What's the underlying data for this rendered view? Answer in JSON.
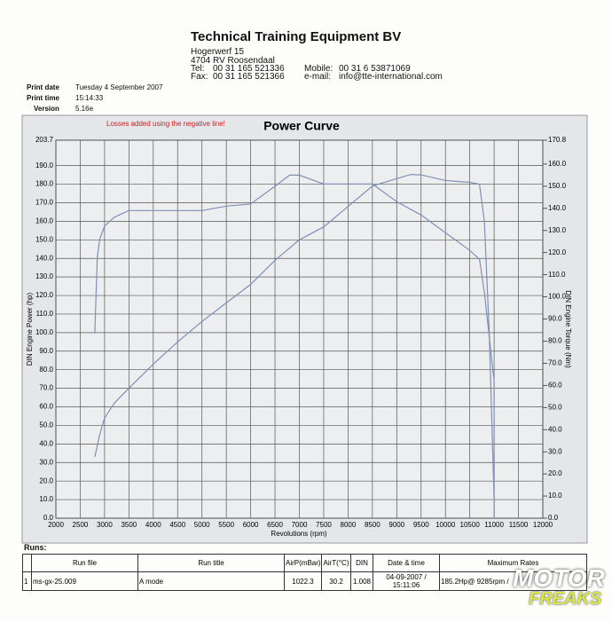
{
  "header": {
    "company": "Technical Training Equipment BV",
    "street": "Hogerwerf 15",
    "city": "4704 RV Roosendaal",
    "tel_label": "Tel:",
    "tel": "00 31 165 521336",
    "fax_label": "Fax:",
    "fax": "00 31 165 521366",
    "mobile_label": "Mobile:",
    "mobile": "00 31 6 53871069",
    "email_label": "e-mail:",
    "email": "info@tte-international.com"
  },
  "print_info": {
    "date_label": "Print date",
    "date": "Tuesday 4 September 2007",
    "time_label": "Print time",
    "time": "15:14:33",
    "version_label": "Version",
    "version": "5.16e"
  },
  "chart_data": {
    "type": "line",
    "title": "Power Curve",
    "annotation": "Losses added using the negative line!",
    "x_label": "Revolutions (rpm)",
    "y_label": "DIN Engine Power (hp)",
    "y2_label": "DIN Engine Torque (Nm)",
    "xlim": [
      2000,
      12000
    ],
    "xticks": [
      2000,
      2500,
      3000,
      3500,
      4000,
      4500,
      5000,
      5500,
      6000,
      6500,
      7000,
      7500,
      8000,
      8500,
      9000,
      9500,
      10000,
      10500,
      11000,
      11500,
      12000
    ],
    "ylim": [
      0,
      203.7
    ],
    "yticks": [
      {
        "value": 0,
        "label": "0.0"
      },
      {
        "value": 10,
        "label": "10.0"
      },
      {
        "value": 20,
        "label": "20.0"
      },
      {
        "value": 30,
        "label": "30.0"
      },
      {
        "value": 40,
        "label": "40.0"
      },
      {
        "value": 50,
        "label": "50.0"
      },
      {
        "value": 60,
        "label": "60.0"
      },
      {
        "value": 70,
        "label": "70.0"
      },
      {
        "value": 80,
        "label": "80.0"
      },
      {
        "value": 90,
        "label": "90.0"
      },
      {
        "value": 100,
        "label": "100.0"
      },
      {
        "value": 110,
        "label": "110.0"
      },
      {
        "value": 120,
        "label": "120.0"
      },
      {
        "value": 130,
        "label": "130.0"
      },
      {
        "value": 140,
        "label": "140.0"
      },
      {
        "value": 150,
        "label": "150.0"
      },
      {
        "value": 160,
        "label": "160.0"
      },
      {
        "value": 170,
        "label": "170.0"
      },
      {
        "value": 180,
        "label": "180.0"
      },
      {
        "value": 190,
        "label": "190.0"
      },
      203.7
    ],
    "y2lim": [
      0,
      170.8
    ],
    "y2ticks": [
      {
        "value": 0,
        "label": "0.0"
      },
      {
        "value": 10,
        "label": "10.0"
      },
      {
        "value": 20,
        "label": "20.0"
      },
      {
        "value": 30,
        "label": "30.0"
      },
      {
        "value": 40,
        "label": "40.0"
      },
      {
        "value": 50,
        "label": "50.0"
      },
      {
        "value": 60,
        "label": "60.0"
      },
      {
        "value": 70,
        "label": "70.0"
      },
      {
        "value": 80,
        "label": "80.0"
      },
      {
        "value": 90,
        "label": "90.0"
      },
      {
        "value": 100,
        "label": "100.0"
      },
      {
        "value": 110,
        "label": "110.0"
      },
      {
        "value": 120,
        "label": "120.0"
      },
      {
        "value": 130,
        "label": "130.0"
      },
      {
        "value": 140,
        "label": "140.0"
      },
      {
        "value": 150,
        "label": "150.0"
      },
      {
        "value": 160,
        "label": "160.0"
      },
      170.8
    ],
    "grid": true,
    "series": [
      {
        "color": "#8090b4",
        "x": [
          2800,
          2900,
          3000,
          3200,
          3500,
          4000,
          4500,
          5000,
          5500,
          6000,
          6500,
          7000,
          7500,
          8000,
          8500,
          9000,
          9285,
          9500,
          10000,
          10500,
          10700,
          10800,
          10900,
          11000,
          11000
        ],
        "values": [
          33,
          45,
          54,
          62,
          70,
          83,
          95,
          106,
          116,
          126,
          139,
          150,
          157,
          168,
          179,
          183,
          185.2,
          185,
          182,
          181,
          180,
          160,
          100,
          10,
          0
        ]
      },
      {
        "color": "#8090b4",
        "axis": "y2",
        "x": [
          2800,
          2850,
          2900,
          3000,
          3200,
          3500,
          4000,
          5000,
          5500,
          6000,
          6500,
          6800,
          7000,
          7500,
          8000,
          8500,
          9000,
          9500,
          10000,
          10500,
          10700,
          10800,
          10900,
          11000,
          11000
        ],
        "values": [
          83.5,
          118,
          126,
          132,
          136,
          139,
          139,
          139,
          141,
          142,
          150,
          155,
          155,
          151,
          151,
          151,
          143,
          137,
          129,
          121,
          117,
          102,
          82,
          62,
          0
        ]
      }
    ]
  },
  "runs": {
    "title": "Runs:",
    "columns": [
      "Run file",
      "Run title",
      "AirP(mBar)",
      "AirT(°C)",
      "DIN",
      "Date & time",
      "Maximum Rates"
    ],
    "rows": [
      [
        "1",
        "ms-gx-25.009",
        "A mode",
        "1022.3",
        "30.2",
        "1.008",
        "04-09-2007 / 15:11:06",
        "185.2Hp@ 9285rpm /"
      ]
    ]
  },
  "watermark": {
    "line1": "MOTOR",
    "line2": "FREAKS"
  }
}
